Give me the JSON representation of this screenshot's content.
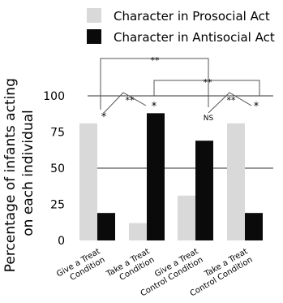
{
  "chart_data": {
    "type": "bar",
    "ylabel": "Percentage of infants acting on each individual",
    "ylim": [
      0,
      100
    ],
    "yticks": [
      0,
      25,
      50,
      75,
      100
    ],
    "grid": "horizontal gridlines at 50 and 100",
    "legend_position": "top",
    "categories": [
      "Give a Treat Condition",
      "Take a Treat Condition",
      "Give a Treat Control Condition",
      "Take a Treat Control Condition"
    ],
    "category_labels": [
      [
        "Give a Treat",
        "Condition"
      ],
      [
        "Take a Treat",
        "Condition"
      ],
      [
        "Give a Treat",
        "Control Condition"
      ],
      [
        "Take a Treat",
        "Control Condition"
      ]
    ],
    "series": [
      {
        "name": "Character in Prosocial Act",
        "color": "#d9d9d9",
        "values": [
          81,
          12,
          31,
          81
        ]
      },
      {
        "name": "Character in Antisocial Act",
        "color": "#0a0a0a",
        "values": [
          19,
          88,
          69,
          19
        ]
      }
    ],
    "annotations": {
      "bar_marks": [
        "*",
        "*",
        "NS",
        "*"
      ],
      "within_brackets": [
        "**",
        "**"
      ],
      "across_brackets": [
        "**",
        "**"
      ]
    }
  }
}
